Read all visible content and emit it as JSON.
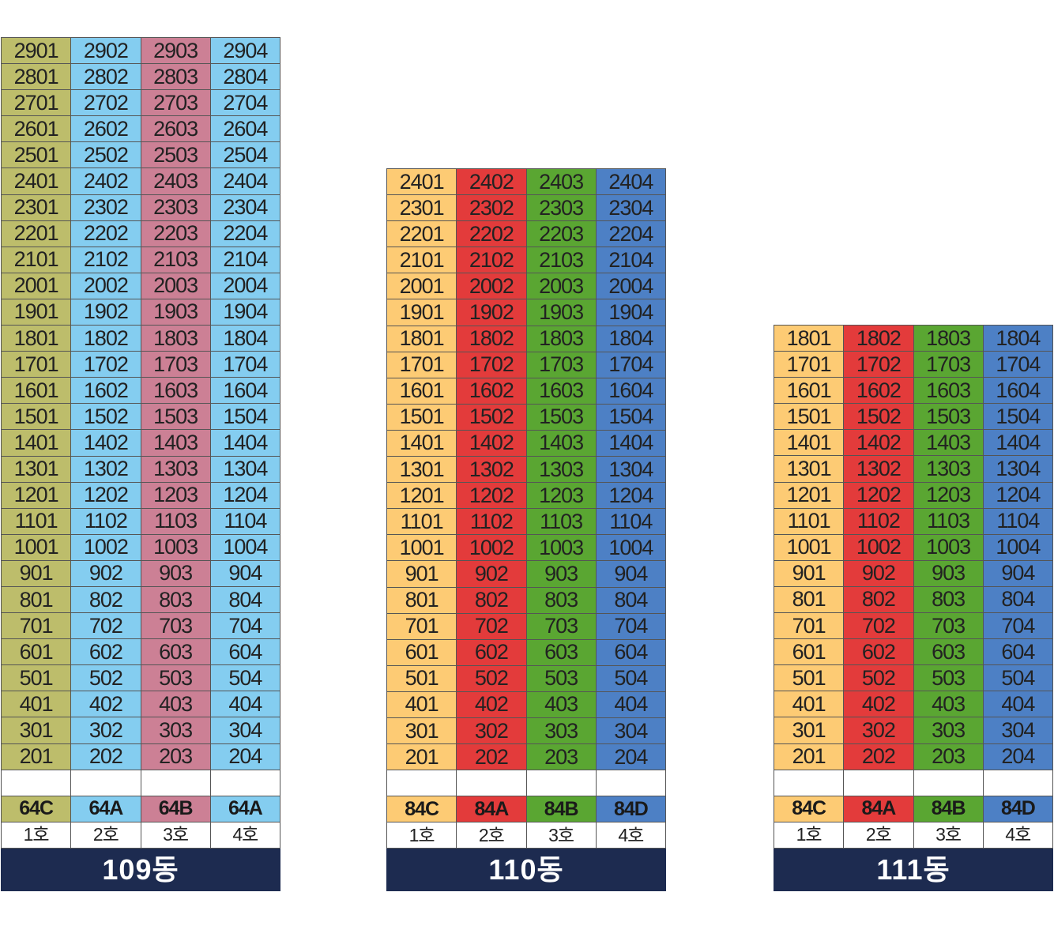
{
  "colors": {
    "olive": "#bdbd6b",
    "sky": "#84cdf0",
    "rose": "#cc8095",
    "peach": "#fdcb74",
    "red": "#e33b3b",
    "green": "#5aa632",
    "blue": "#4d80c5",
    "navy": "#1d2b50"
  },
  "buildings": [
    {
      "id": "b109",
      "name": "109동",
      "floors": [
        29,
        28,
        27,
        26,
        25,
        24,
        23,
        22,
        21,
        20,
        19,
        18,
        17,
        16,
        15,
        14,
        13,
        12,
        11,
        10,
        9,
        8,
        7,
        6,
        5,
        4,
        3,
        2
      ],
      "columns": [
        {
          "line": "1호",
          "type": "64C",
          "color": "#bdbd6b"
        },
        {
          "line": "2호",
          "type": "64A",
          "color": "#84cdf0"
        },
        {
          "line": "3호",
          "type": "64B",
          "color": "#cc8095"
        },
        {
          "line": "4호",
          "type": "64A",
          "color": "#84cdf0"
        }
      ]
    },
    {
      "id": "b110",
      "name": "110동",
      "floors": [
        24,
        23,
        22,
        21,
        20,
        19,
        18,
        17,
        16,
        15,
        14,
        13,
        12,
        11,
        10,
        9,
        8,
        7,
        6,
        5,
        4,
        3,
        2
      ],
      "columns": [
        {
          "line": "1호",
          "type": "84C",
          "color": "#fdcb74"
        },
        {
          "line": "2호",
          "type": "84A",
          "color": "#e33b3b"
        },
        {
          "line": "3호",
          "type": "84B",
          "color": "#5aa632"
        },
        {
          "line": "4호",
          "type": "84D",
          "color": "#4d80c5"
        }
      ]
    },
    {
      "id": "b111",
      "name": "111동",
      "floors": [
        18,
        17,
        16,
        15,
        14,
        13,
        12,
        11,
        10,
        9,
        8,
        7,
        6,
        5,
        4,
        3,
        2
      ],
      "columns": [
        {
          "line": "1호",
          "type": "84C",
          "color": "#fdcb74"
        },
        {
          "line": "2호",
          "type": "84A",
          "color": "#e33b3b"
        },
        {
          "line": "3호",
          "type": "84B",
          "color": "#5aa632"
        },
        {
          "line": "4호",
          "type": "84D",
          "color": "#4d80c5"
        }
      ]
    }
  ]
}
